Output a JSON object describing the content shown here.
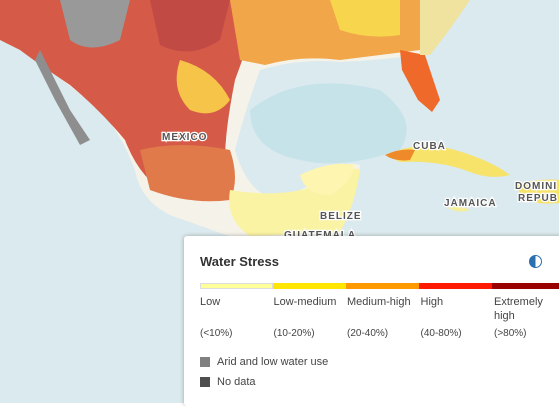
{
  "map": {
    "labels": [
      "MEXICO",
      "CUBA",
      "BELIZE",
      "JAMAICA",
      "GUATEMALA",
      "DOMINI",
      "REPUB"
    ]
  },
  "legend": {
    "title": "Water Stress",
    "classes": [
      {
        "name": "Low",
        "range": "(<10%)",
        "color": "#ffff99"
      },
      {
        "name": "Low-medium",
        "range": "(10-20%)",
        "color": "#ffe600"
      },
      {
        "name": "Medium-high",
        "range": "(20-40%)",
        "color": "#ff9900"
      },
      {
        "name": "High",
        "range": "(40-80%)",
        "color": "#ff1900"
      },
      {
        "name": "Extremely high",
        "range": "(>80%)",
        "color": "#990000"
      }
    ],
    "extras": [
      {
        "name": "Arid and low water use",
        "color": "#808080"
      },
      {
        "name": "No data",
        "color": "#4e4e4e"
      }
    ]
  }
}
